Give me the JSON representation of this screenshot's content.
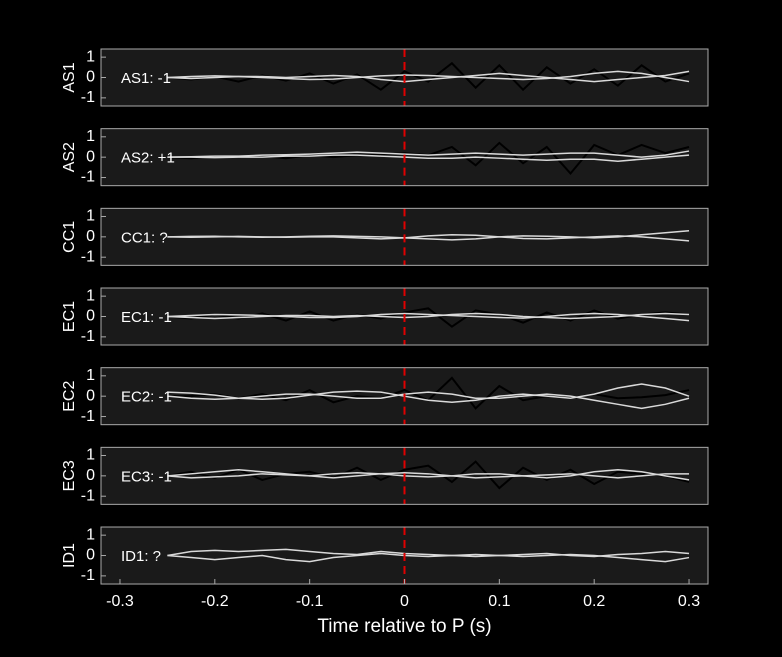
{
  "chart_data": [
    {
      "type": "line",
      "ylabel": "AS1",
      "annotation": {
        "text": "AS1: -1",
        "color": "#0000b0"
      },
      "xlim": [
        -0.32,
        0.32
      ],
      "ylim": [
        -1.4,
        1.4
      ],
      "yticks": [
        -1,
        0,
        1
      ],
      "vline": {
        "x": 0,
        "color": "#e00000"
      },
      "x": [
        -0.25,
        -0.225,
        -0.2,
        -0.175,
        -0.15,
        -0.125,
        -0.1,
        -0.075,
        -0.05,
        -0.025,
        0,
        0.025,
        0.05,
        0.075,
        0.1,
        0.125,
        0.15,
        0.175,
        0.2,
        0.225,
        0.25,
        0.275,
        0.3
      ],
      "series": [
        {
          "color": "#000000",
          "values": [
            0,
            -0.1,
            0.05,
            -0.2,
            0.1,
            -0.15,
            0.2,
            -0.3,
            0.15,
            -0.6,
            0.3,
            -0.2,
            0.7,
            -0.5,
            0.6,
            -0.6,
            0.5,
            -0.3,
            0.4,
            -0.4,
            0.6,
            -0.2,
            0.2
          ]
        },
        {
          "color": "#d9d9d9",
          "values": [
            0,
            0.05,
            0.08,
            0.05,
            0,
            -0.05,
            -0.1,
            -0.08,
            0,
            0.08,
            0.12,
            0.1,
            0.05,
            0,
            -0.05,
            -0.1,
            -0.05,
            0.05,
            0.2,
            0.3,
            0.2,
            0,
            -0.2
          ]
        },
        {
          "color": "#d9d9d9",
          "values": [
            0,
            -0.05,
            0,
            0.05,
            0.05,
            0,
            0.05,
            0.1,
            0.05,
            -0.1,
            -0.2,
            -0.1,
            0,
            0.1,
            0.2,
            0.1,
            0,
            -0.1,
            -0.2,
            -0.1,
            0,
            0.1,
            0.3
          ]
        }
      ]
    },
    {
      "type": "line",
      "ylabel": "AS2",
      "annotation": {
        "text": "AS2: +1",
        "color": "#e00000"
      },
      "xlim": [
        -0.32,
        0.32
      ],
      "ylim": [
        -1.4,
        1.4
      ],
      "yticks": [
        -1,
        0,
        1
      ],
      "vline": {
        "x": 0,
        "color": "#e00000"
      },
      "x": [
        -0.25,
        -0.225,
        -0.2,
        -0.175,
        -0.15,
        -0.125,
        -0.1,
        -0.075,
        -0.05,
        -0.025,
        0,
        0.025,
        0.05,
        0.075,
        0.1,
        0.125,
        0.15,
        0.175,
        0.2,
        0.225,
        0.25,
        0.275,
        0.3
      ],
      "series": [
        {
          "color": "#000000",
          "values": [
            0,
            -0.05,
            0.05,
            0,
            0.05,
            -0.05,
            0.1,
            0,
            0.1,
            0.1,
            0.2,
            0.1,
            0.5,
            -0.4,
            0.7,
            -0.3,
            0.5,
            -0.8,
            0.6,
            0.1,
            0.6,
            0.2,
            0.5
          ]
        },
        {
          "color": "#d9d9d9",
          "values": [
            0,
            0.02,
            0.05,
            0.05,
            0.1,
            0.12,
            0.15,
            0.2,
            0.25,
            0.2,
            0.15,
            0.1,
            0.15,
            0.2,
            0.15,
            0.1,
            0.15,
            0.2,
            0.2,
            0.1,
            0,
            0.1,
            0.3
          ]
        },
        {
          "color": "#d9d9d9",
          "values": [
            0,
            0,
            -0.02,
            0,
            0,
            0.05,
            0.05,
            0.1,
            0.1,
            0.05,
            0,
            -0.05,
            -0.05,
            0,
            -0.05,
            -0.1,
            -0.15,
            -0.1,
            -0.1,
            -0.2,
            -0.1,
            0,
            0.1
          ]
        }
      ]
    },
    {
      "type": "line",
      "ylabel": "CC1",
      "annotation": {
        "text": "CC1: ?",
        "color": "#909090"
      },
      "xlim": [
        -0.32,
        0.32
      ],
      "ylim": [
        -1.4,
        1.4
      ],
      "yticks": [
        -1,
        0,
        1
      ],
      "vline": {
        "x": 0,
        "color": "#e00000"
      },
      "x": [
        -0.25,
        -0.225,
        -0.2,
        -0.175,
        -0.15,
        -0.125,
        -0.1,
        -0.075,
        -0.05,
        -0.025,
        0,
        0.025,
        0.05,
        0.075,
        0.1,
        0.125,
        0.15,
        0.175,
        0.2,
        0.225,
        0.25,
        0.275,
        0.3
      ],
      "series": [
        {
          "color": "#d9d9d9",
          "values": [
            0,
            0.02,
            0.03,
            0,
            -0.02,
            0,
            0.03,
            0.05,
            0.02,
            0,
            -0.05,
            -0.1,
            -0.15,
            -0.1,
            0,
            0.05,
            0.03,
            0,
            -0.05,
            0,
            0.1,
            0.2,
            0.3
          ]
        },
        {
          "color": "#d9d9d9",
          "values": [
            0,
            -0.02,
            0,
            0.02,
            0,
            -0.02,
            0,
            0,
            -0.05,
            -0.1,
            -0.05,
            0.05,
            0.1,
            0.08,
            0,
            -0.08,
            -0.1,
            -0.05,
            0,
            0.05,
            0,
            -0.1,
            -0.2
          ]
        }
      ]
    },
    {
      "type": "line",
      "ylabel": "EC1",
      "annotation": {
        "text": "EC1: -1",
        "color": "#0000b0"
      },
      "xlim": [
        -0.32,
        0.32
      ],
      "ylim": [
        -1.4,
        1.4
      ],
      "yticks": [
        -1,
        0,
        1
      ],
      "vline": {
        "x": 0,
        "color": "#e00000"
      },
      "x": [
        -0.25,
        -0.225,
        -0.2,
        -0.175,
        -0.15,
        -0.125,
        -0.1,
        -0.075,
        -0.05,
        -0.025,
        0,
        0.025,
        0.05,
        0.075,
        0.1,
        0.125,
        0.15,
        0.175,
        0.2,
        0.225,
        0.25,
        0.275,
        0.3
      ],
      "series": [
        {
          "color": "#000000",
          "values": [
            0,
            -0.1,
            0.1,
            -0.1,
            0.15,
            -0.2,
            0.25,
            -0.2,
            0.1,
            -0.1,
            0.2,
            0.4,
            -0.5,
            0.3,
            0.1,
            -0.3,
            0.2,
            -0.2,
            0.3,
            -0.1,
            0.1,
            0.2,
            0.1
          ]
        },
        {
          "color": "#d9d9d9",
          "values": [
            0,
            0.05,
            0.1,
            0.08,
            0.05,
            0,
            -0.05,
            -0.05,
            0,
            0.1,
            0.15,
            0.1,
            0.05,
            0,
            -0.05,
            -0.08,
            0,
            0.1,
            0.15,
            0.1,
            0,
            -0.1,
            -0.2
          ]
        },
        {
          "color": "#d9d9d9",
          "values": [
            0,
            -0.05,
            -0.1,
            -0.05,
            0,
            0.05,
            0.05,
            0,
            0.05,
            0,
            -0.05,
            0,
            0.1,
            0.15,
            0.1,
            0,
            -0.05,
            -0.1,
            -0.05,
            0,
            0.1,
            0.15,
            0.1
          ]
        }
      ]
    },
    {
      "type": "line",
      "ylabel": "EC2",
      "annotation": {
        "text": "EC2: -1",
        "color": "#0000b0"
      },
      "xlim": [
        -0.32,
        0.32
      ],
      "ylim": [
        -1.4,
        1.4
      ],
      "yticks": [
        -1,
        0,
        1
      ],
      "vline": {
        "x": 0,
        "color": "#e00000"
      },
      "x": [
        -0.25,
        -0.225,
        -0.2,
        -0.175,
        -0.15,
        -0.125,
        -0.1,
        -0.075,
        -0.05,
        -0.025,
        0,
        0.025,
        0.05,
        0.075,
        0.1,
        0.125,
        0.15,
        0.175,
        0.2,
        0.225,
        0.25,
        0.275,
        0.3
      ],
      "series": [
        {
          "color": "#000000",
          "values": [
            0,
            0,
            0.1,
            -0.1,
            0.1,
            -0.2,
            0.3,
            -0.3,
            0,
            -0.1,
            0.3,
            -0.2,
            0.9,
            -0.6,
            0.5,
            -0.2,
            0,
            -0.1,
            0.1,
            -0.1,
            -0.05,
            0.05,
            0.3
          ]
        },
        {
          "color": "#d9d9d9",
          "values": [
            0.2,
            0.15,
            0.05,
            -0.1,
            -0.15,
            -0.1,
            0.05,
            0.2,
            0.25,
            0.2,
            0,
            -0.2,
            -0.3,
            -0.2,
            0,
            0.1,
            0,
            -0.1,
            0.1,
            0.4,
            0.6,
            0.4,
            0
          ]
        },
        {
          "color": "#d9d9d9",
          "values": [
            0,
            -0.1,
            -0.15,
            -0.1,
            0,
            0.1,
            0.1,
            0,
            -0.1,
            -0.1,
            0.1,
            0.2,
            0.1,
            -0.1,
            -0.1,
            0,
            0.1,
            0,
            -0.2,
            -0.4,
            -0.6,
            -0.4,
            -0.1
          ]
        }
      ]
    },
    {
      "type": "line",
      "ylabel": "EC3",
      "annotation": {
        "text": "EC3: -1",
        "color": "#0000b0"
      },
      "xlim": [
        -0.32,
        0.32
      ],
      "ylim": [
        -1.4,
        1.4
      ],
      "yticks": [
        -1,
        0,
        1
      ],
      "vline": {
        "x": 0,
        "color": "#e00000"
      },
      "x": [
        -0.25,
        -0.225,
        -0.2,
        -0.175,
        -0.15,
        -0.125,
        -0.1,
        -0.075,
        -0.05,
        -0.025,
        0,
        0.025,
        0.05,
        0.075,
        0.1,
        0.125,
        0.15,
        0.175,
        0.2,
        0.225,
        0.25,
        0.275,
        0.3
      ],
      "series": [
        {
          "color": "#000000",
          "values": [
            0,
            0.2,
            -0.1,
            0.3,
            -0.2,
            0.1,
            0.2,
            -0.1,
            0.4,
            -0.2,
            0.3,
            0.5,
            -0.3,
            0.7,
            -0.6,
            0.4,
            -0.2,
            0.3,
            -0.4,
            0.2,
            0.1,
            0,
            -0.3
          ]
        },
        {
          "color": "#d9d9d9",
          "values": [
            0,
            0.1,
            0.2,
            0.3,
            0.2,
            0.1,
            0,
            0.1,
            0.15,
            0.1,
            0,
            -0.05,
            0,
            0.1,
            0.1,
            0,
            -0.1,
            0,
            0.2,
            0.3,
            0.2,
            0,
            -0.2
          ]
        },
        {
          "color": "#d9d9d9",
          "values": [
            0,
            -0.1,
            -0.05,
            0,
            0.1,
            0.05,
            0,
            -0.1,
            0,
            0.1,
            0.15,
            0.1,
            0,
            -0.1,
            -0.05,
            0,
            0.05,
            0.1,
            0,
            -0.1,
            0,
            0.1,
            0.1
          ]
        }
      ]
    },
    {
      "type": "line",
      "ylabel": "ID1",
      "annotation": {
        "text": "ID1: ?",
        "color": "#909090"
      },
      "xlim": [
        -0.32,
        0.32
      ],
      "ylim": [
        -1.4,
        1.4
      ],
      "yticks": [
        -1,
        0,
        1
      ],
      "vline": {
        "x": 0,
        "color": "#e00000"
      },
      "xticks": [
        -0.3,
        -0.2,
        -0.1,
        0,
        0.1,
        0.2,
        0.3
      ],
      "xlabel": "Time relative to P (s)",
      "x": [
        -0.25,
        -0.225,
        -0.2,
        -0.175,
        -0.15,
        -0.125,
        -0.1,
        -0.075,
        -0.05,
        -0.025,
        0,
        0.025,
        0.05,
        0.075,
        0.1,
        0.125,
        0.15,
        0.175,
        0.2,
        0.225,
        0.25,
        0.275,
        0.3
      ],
      "series": [
        {
          "color": "#d9d9d9",
          "values": [
            0,
            0.2,
            0.25,
            0.2,
            0.25,
            0.3,
            0.2,
            0.1,
            0.05,
            0.2,
            0.1,
            0.05,
            0,
            -0.05,
            0,
            0.05,
            0.1,
            0,
            -0.05,
            0.05,
            0.1,
            0.2,
            0.1
          ]
        },
        {
          "color": "#d9d9d9",
          "values": [
            0,
            -0.1,
            -0.2,
            -0.1,
            0,
            -0.2,
            -0.3,
            -0.1,
            0,
            0.1,
            0,
            -0.05,
            0,
            0.05,
            0,
            -0.05,
            0,
            0.05,
            0,
            -0.1,
            -0.2,
            -0.3,
            -0.1
          ]
        }
      ]
    }
  ]
}
